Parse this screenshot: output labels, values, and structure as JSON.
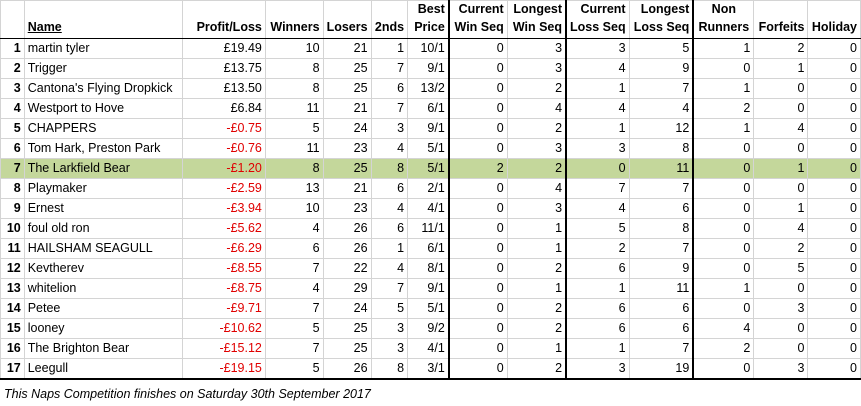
{
  "header": {
    "row1": [
      "",
      "",
      "",
      "",
      "",
      "",
      "Best",
      "Current",
      "Longest",
      "Current",
      "Longest",
      "Non",
      "",
      ""
    ],
    "row2": [
      "",
      "Name",
      "Profit/Loss",
      "Winners",
      "Losers",
      "2nds",
      "Price",
      "Win Seq",
      "Win Seq",
      "Loss Seq",
      "Loss Seq",
      "Runners",
      "Forfeits",
      "Holiday"
    ]
  },
  "rows": [
    {
      "rank": "1",
      "name": "martin tyler",
      "pl": "£19.49",
      "winners": "10",
      "losers": "21",
      "seconds": "1",
      "best": "10/1",
      "cws": "0",
      "lws": "3",
      "cls": "3",
      "lls": "5",
      "nr": "1",
      "forfeits": "2",
      "holiday": "0",
      "negative": false,
      "highlight": false
    },
    {
      "rank": "2",
      "name": "Trigger",
      "pl": "£13.75",
      "winners": "8",
      "losers": "25",
      "seconds": "7",
      "best": "9/1",
      "cws": "0",
      "lws": "3",
      "cls": "4",
      "lls": "9",
      "nr": "0",
      "forfeits": "1",
      "holiday": "0",
      "negative": false,
      "highlight": false
    },
    {
      "rank": "3",
      "name": "Cantona's Flying Dropkick",
      "pl": "£13.50",
      "winners": "8",
      "losers": "25",
      "seconds": "6",
      "best": "13/2",
      "cws": "0",
      "lws": "2",
      "cls": "1",
      "lls": "7",
      "nr": "1",
      "forfeits": "0",
      "holiday": "0",
      "negative": false,
      "highlight": false
    },
    {
      "rank": "4",
      "name": "Westport to Hove",
      "pl": "£6.84",
      "winners": "11",
      "losers": "21",
      "seconds": "7",
      "best": "6/1",
      "cws": "0",
      "lws": "4",
      "cls": "4",
      "lls": "4",
      "nr": "2",
      "forfeits": "0",
      "holiday": "0",
      "negative": false,
      "highlight": false
    },
    {
      "rank": "5",
      "name": "CHAPPERS",
      "pl": "-£0.75",
      "winners": "5",
      "losers": "24",
      "seconds": "3",
      "best": "9/1",
      "cws": "0",
      "lws": "2",
      "cls": "1",
      "lls": "12",
      "nr": "1",
      "forfeits": "4",
      "holiday": "0",
      "negative": true,
      "highlight": false
    },
    {
      "rank": "6",
      "name": "Tom Hark, Preston Park",
      "pl": "-£0.76",
      "winners": "11",
      "losers": "23",
      "seconds": "4",
      "best": "5/1",
      "cws": "0",
      "lws": "3",
      "cls": "3",
      "lls": "8",
      "nr": "0",
      "forfeits": "0",
      "holiday": "0",
      "negative": true,
      "highlight": false
    },
    {
      "rank": "7",
      "name": "The Larkfield Bear",
      "pl": "-£1.20",
      "winners": "8",
      "losers": "25",
      "seconds": "8",
      "best": "5/1",
      "cws": "2",
      "lws": "2",
      "cls": "0",
      "lls": "11",
      "nr": "0",
      "forfeits": "1",
      "holiday": "0",
      "negative": true,
      "highlight": true
    },
    {
      "rank": "8",
      "name": "Playmaker",
      "pl": "-£2.59",
      "winners": "13",
      "losers": "21",
      "seconds": "6",
      "best": "2/1",
      "cws": "0",
      "lws": "4",
      "cls": "7",
      "lls": "7",
      "nr": "0",
      "forfeits": "0",
      "holiday": "0",
      "negative": true,
      "highlight": false
    },
    {
      "rank": "9",
      "name": "Ernest",
      "pl": "-£3.94",
      "winners": "10",
      "losers": "23",
      "seconds": "4",
      "best": "4/1",
      "cws": "0",
      "lws": "3",
      "cls": "4",
      "lls": "6",
      "nr": "0",
      "forfeits": "1",
      "holiday": "0",
      "negative": true,
      "highlight": false
    },
    {
      "rank": "10",
      "name": "foul old ron",
      "pl": "-£5.62",
      "winners": "4",
      "losers": "26",
      "seconds": "6",
      "best": "11/1",
      "cws": "0",
      "lws": "1",
      "cls": "5",
      "lls": "8",
      "nr": "0",
      "forfeits": "4",
      "holiday": "0",
      "negative": true,
      "highlight": false
    },
    {
      "rank": "11",
      "name": "HAILSHAM SEAGULL",
      "pl": "-£6.29",
      "winners": "6",
      "losers": "26",
      "seconds": "1",
      "best": "6/1",
      "cws": "0",
      "lws": "1",
      "cls": "2",
      "lls": "7",
      "nr": "0",
      "forfeits": "2",
      "holiday": "0",
      "negative": true,
      "highlight": false
    },
    {
      "rank": "12",
      "name": "Kevtherev",
      "pl": "-£8.55",
      "winners": "7",
      "losers": "22",
      "seconds": "4",
      "best": "8/1",
      "cws": "0",
      "lws": "2",
      "cls": "6",
      "lls": "9",
      "nr": "0",
      "forfeits": "5",
      "holiday": "0",
      "negative": true,
      "highlight": false
    },
    {
      "rank": "13",
      "name": "whitelion",
      "pl": "-£8.75",
      "winners": "4",
      "losers": "29",
      "seconds": "7",
      "best": "9/1",
      "cws": "0",
      "lws": "1",
      "cls": "1",
      "lls": "11",
      "nr": "1",
      "forfeits": "0",
      "holiday": "0",
      "negative": true,
      "highlight": false
    },
    {
      "rank": "14",
      "name": "Petee",
      "pl": "-£9.71",
      "winners": "7",
      "losers": "24",
      "seconds": "5",
      "best": "5/1",
      "cws": "0",
      "lws": "2",
      "cls": "6",
      "lls": "6",
      "nr": "0",
      "forfeits": "3",
      "holiday": "0",
      "negative": true,
      "highlight": false
    },
    {
      "rank": "15",
      "name": "looney",
      "pl": "-£10.62",
      "winners": "5",
      "losers": "25",
      "seconds": "3",
      "best": "9/2",
      "cws": "0",
      "lws": "2",
      "cls": "6",
      "lls": "6",
      "nr": "4",
      "forfeits": "0",
      "holiday": "0",
      "negative": true,
      "highlight": false
    },
    {
      "rank": "16",
      "name": "The Brighton Bear",
      "pl": "-£15.12",
      "winners": "7",
      "losers": "25",
      "seconds": "3",
      "best": "4/1",
      "cws": "0",
      "lws": "1",
      "cls": "1",
      "lls": "7",
      "nr": "2",
      "forfeits": "0",
      "holiday": "0",
      "negative": true,
      "highlight": false
    },
    {
      "rank": "17",
      "name": "Leegull",
      "pl": "-£19.15",
      "winners": "5",
      "losers": "26",
      "seconds": "8",
      "best": "3/1",
      "cws": "0",
      "lws": "2",
      "cls": "3",
      "lls": "19",
      "nr": "0",
      "forfeits": "3",
      "holiday": "0",
      "negative": true,
      "highlight": false
    }
  ],
  "footnote": "This Naps Competition finishes on Saturday 30th September 2017",
  "colors": {
    "negative": "#e00000",
    "highlight_row": "#c4d79b"
  }
}
